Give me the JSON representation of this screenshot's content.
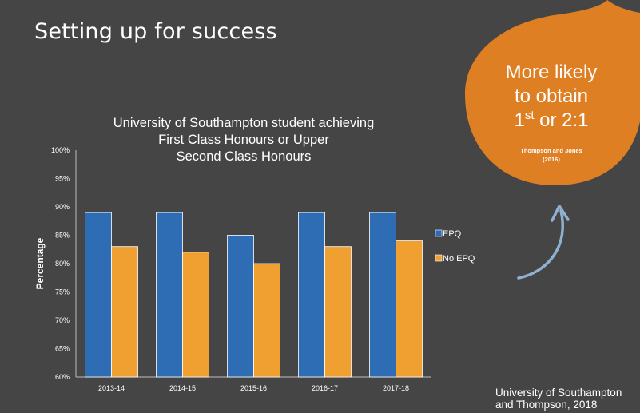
{
  "slide": {
    "title": "Setting up for success",
    "source_line1": "University of Southampton",
    "source_line2": "and Thompson, 2018"
  },
  "callout": {
    "line1": "More likely",
    "line2": "to obtain",
    "line3_main": "1",
    "line3_sup": "st",
    "line3_rest": " or 2:1",
    "citation_line1": "Thompson and Jones",
    "citation_line2": "(2016)",
    "color": "#de7f24"
  },
  "chart_data": {
    "type": "bar",
    "title_lines": [
      "University of Southampton student achieving",
      "First Class Honours or Upper",
      "Second Class Honours"
    ],
    "categories": [
      "2013-14",
      "2014-15",
      "2015-16",
      "2016-17",
      "2017-18"
    ],
    "series": [
      {
        "name": "EPQ",
        "values": [
          89,
          89,
          85,
          89,
          89
        ],
        "color": "#2e6db4"
      },
      {
        "name": "No EPQ",
        "values": [
          83,
          82,
          80,
          83,
          84
        ],
        "color": "#f0a030"
      }
    ],
    "ylabel": "Percentage",
    "ylim": [
      60,
      100
    ],
    "yticks": [
      "60%",
      "65%",
      "70%",
      "75%",
      "80%",
      "85%",
      "90%",
      "95%",
      "100%"
    ],
    "grid": false,
    "legend_position": "right"
  }
}
